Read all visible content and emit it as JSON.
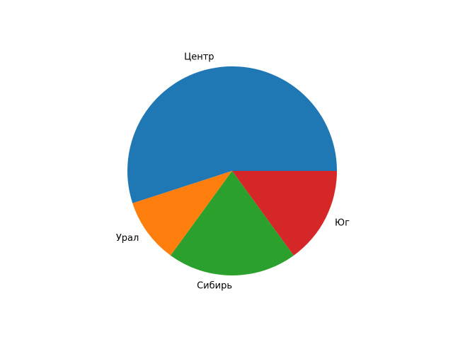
{
  "chart_data": {
    "type": "pie",
    "categories": [
      "Центр",
      "Урал",
      "Сибирь",
      "Юг"
    ],
    "values": [
      55,
      10,
      20,
      15
    ],
    "colors": [
      "#1f77b4",
      "#ff7f0e",
      "#2ca02c",
      "#d62728"
    ],
    "start_angle_deg": 0,
    "direction": "counterclockwise",
    "title": ""
  }
}
